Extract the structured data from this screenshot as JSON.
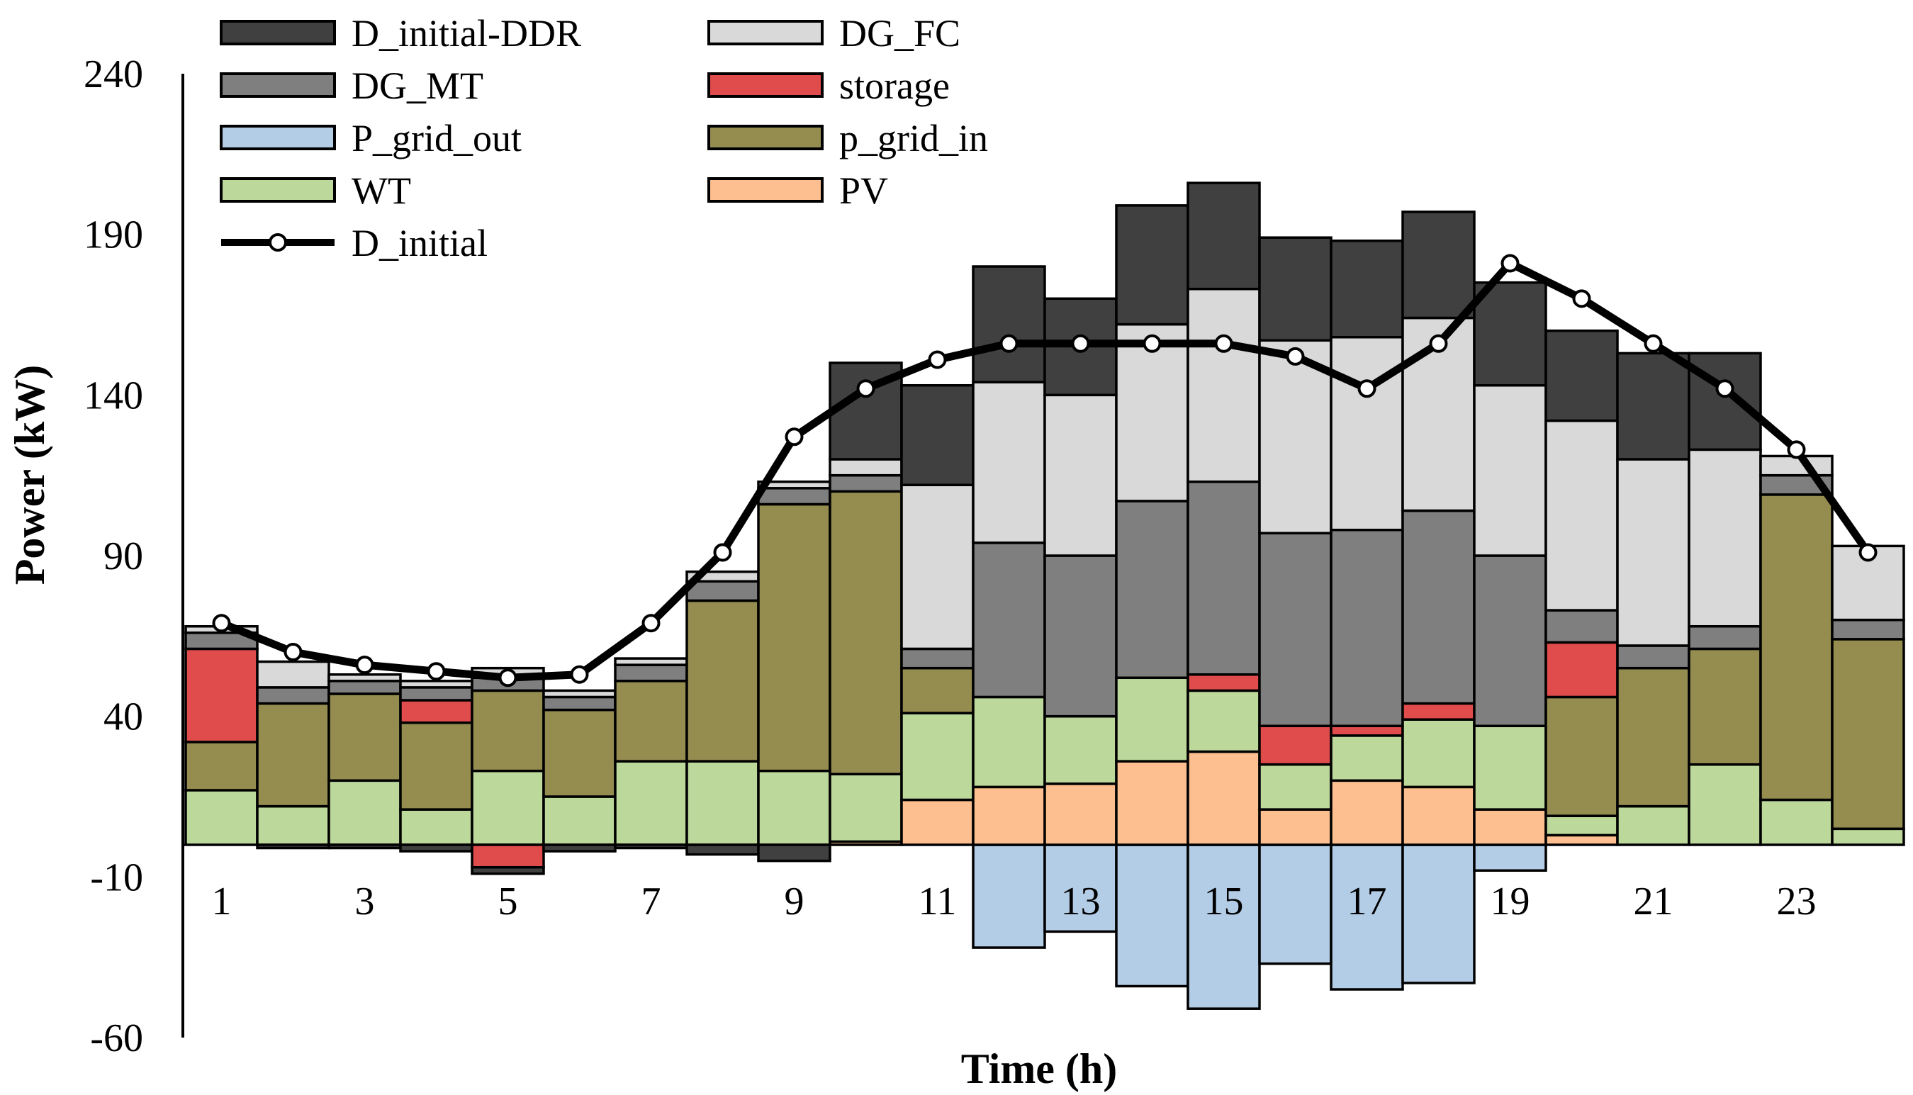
{
  "chart_data": {
    "type": "stacked-bar-with-line",
    "title": "",
    "xlabel": "Time (h)",
    "ylabel": "Power (kW)",
    "ylim": [
      -60,
      240
    ],
    "yticks": [
      240,
      190,
      140,
      90,
      40,
      -10,
      -60
    ],
    "xticks": [
      1,
      3,
      5,
      7,
      9,
      11,
      13,
      15,
      17,
      19,
      21,
      23
    ],
    "hours": [
      1,
      2,
      3,
      4,
      5,
      6,
      7,
      8,
      9,
      10,
      11,
      12,
      13,
      14,
      15,
      16,
      17,
      18,
      19,
      20,
      21,
      22,
      23,
      24
    ],
    "series": [
      {
        "name": "P_grid_out",
        "color": "#b4cde6",
        "values": [
          0,
          0,
          0,
          0,
          0,
          0,
          0,
          0,
          0,
          0,
          0,
          -32,
          -27,
          -44,
          -51,
          -37,
          -45,
          -43,
          -8,
          0,
          0,
          0,
          0,
          0
        ]
      },
      {
        "name": "PV",
        "color": "#fdbf8f",
        "values": [
          0,
          0,
          0,
          0,
          0,
          0,
          0,
          0,
          0,
          1,
          14,
          18,
          19,
          26,
          29,
          11,
          20,
          18,
          11,
          3,
          0,
          0,
          0,
          0
        ]
      },
      {
        "name": "WT",
        "color": "#bcd89b",
        "values": [
          17,
          12,
          20,
          11,
          23,
          15,
          26,
          26,
          23,
          21,
          27,
          28,
          21,
          26,
          19,
          14,
          14,
          21,
          26,
          6,
          12,
          25,
          14,
          5
        ]
      },
      {
        "name": "p_grid_in",
        "color": "#958c50",
        "values": [
          15,
          32,
          27,
          27,
          25,
          27,
          25,
          50,
          83,
          88,
          14,
          0,
          0,
          0,
          0,
          0,
          0,
          0,
          0,
          37,
          43,
          36,
          95,
          59
        ]
      },
      {
        "name": "storage",
        "color": "#df4c4b",
        "values": [
          29,
          0,
          0,
          7,
          -7,
          0,
          0,
          0,
          0,
          0,
          0,
          0,
          0,
          0,
          5,
          12,
          3,
          5,
          0,
          17,
          0,
          0,
          0,
          0
        ]
      },
      {
        "name": "DG_MT",
        "color": "#7f7f7f",
        "values": [
          5,
          5,
          4,
          4,
          4,
          4,
          5,
          6,
          5,
          5,
          6,
          48,
          50,
          55,
          60,
          60,
          61,
          60,
          53,
          10,
          7,
          7,
          6,
          6
        ]
      },
      {
        "name": "DG_FC",
        "color": "#d9d9d9",
        "values": [
          2,
          8,
          2,
          2,
          3,
          2,
          2,
          3,
          2,
          5,
          51,
          50,
          50,
          55,
          60,
          60,
          60,
          60,
          53,
          59,
          58,
          55,
          6,
          23
        ]
      },
      {
        "name": "D_initial-DDR",
        "color": "#404040",
        "values": [
          0,
          -1,
          -1,
          -2,
          -2,
          -2,
          -1,
          -3,
          -5,
          30,
          31,
          36,
          30,
          37,
          33,
          32,
          30,
          33,
          32,
          28,
          33,
          30,
          0,
          0
        ]
      }
    ],
    "line": {
      "name": "D_initial",
      "color": "#000000",
      "values": [
        69,
        60,
        56,
        54,
        52,
        53,
        69,
        91,
        127,
        142,
        151,
        156,
        156,
        156,
        156,
        152,
        142,
        156,
        181,
        170,
        156,
        142,
        123,
        91
      ]
    },
    "legend": {
      "position": "top-left",
      "items": [
        {
          "label": "D_initial-DDR",
          "type": "bar",
          "color": "#404040"
        },
        {
          "label": "DG_FC",
          "type": "bar",
          "color": "#d9d9d9"
        },
        {
          "label": "DG_MT",
          "type": "bar",
          "color": "#7f7f7f"
        },
        {
          "label": "storage",
          "type": "bar",
          "color": "#df4c4b"
        },
        {
          "label": "P_grid_out",
          "type": "bar",
          "color": "#b4cde6"
        },
        {
          "label": "p_grid_in",
          "type": "bar",
          "color": "#958c50"
        },
        {
          "label": "WT",
          "type": "bar",
          "color": "#bcd89b"
        },
        {
          "label": "PV",
          "type": "bar",
          "color": "#fdbf8f"
        },
        {
          "label": "D_initial",
          "type": "line",
          "color": "#000000"
        }
      ]
    }
  }
}
